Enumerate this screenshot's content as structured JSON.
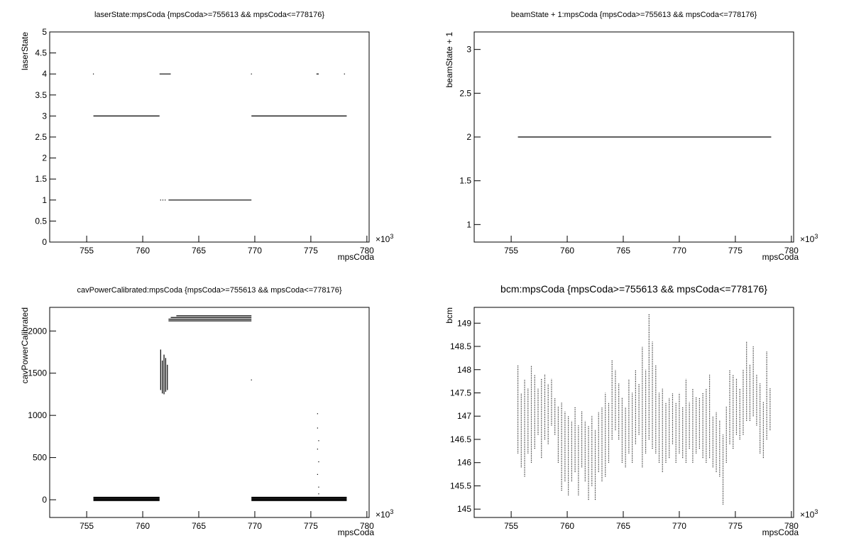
{
  "chart_data": [
    {
      "type": "line",
      "title": "laserState:mpsCoda {mpsCoda>=755613 && mpsCoda<=778176}",
      "x_label": "mpsCoda",
      "y_label": "laserState",
      "x_exponent": {
        "base": "×10",
        "power": "3"
      },
      "xlim": [
        751.7,
        780.2
      ],
      "xticks": [
        755,
        760,
        765,
        770,
        775,
        780
      ],
      "ylim": [
        0,
        5
      ],
      "yticks": [
        0,
        0.5,
        1,
        1.5,
        2,
        2.5,
        3,
        3.5,
        4,
        4.5,
        5
      ],
      "grid": false,
      "color": "#000000",
      "x": [
        755.6,
        null,
        755.6,
        761.5,
        null,
        761.5,
        762.5,
        null,
        761.6,
        null,
        761.8,
        null,
        762.0,
        null,
        762.3,
        769.7,
        null,
        769.7,
        null,
        769.7,
        778.2,
        null,
        775.5,
        775.7,
        null,
        778.0
      ],
      "y": [
        4,
        null,
        3,
        3,
        null,
        4,
        4,
        null,
        1,
        null,
        1,
        null,
        1,
        null,
        1,
        1,
        null,
        4,
        null,
        3,
        3,
        null,
        4,
        4,
        null,
        4
      ]
    },
    {
      "type": "line",
      "title": "beamState + 1:mpsCoda {mpsCoda>=755613 && mpsCoda<=778176}",
      "x_label": "mpsCoda",
      "y_label": "beamState + 1",
      "x_exponent": {
        "base": "×10",
        "power": "3"
      },
      "xlim": [
        751.7,
        780.2
      ],
      "xticks": [
        755,
        760,
        765,
        770,
        775,
        780
      ],
      "ylim": [
        0.8,
        3.2
      ],
      "yticks": [
        1,
        1.5,
        2,
        2.5,
        3
      ],
      "grid": false,
      "color": "#000000",
      "x": [
        755.6,
        778.2
      ],
      "y": [
        2,
        2
      ]
    },
    {
      "type": "line",
      "title": "cavPowerCalibrated:mpsCoda {mpsCoda>=755613 && mpsCoda<=778176}",
      "x_label": "mpsCoda",
      "y_label": "cavPowerCalibrated",
      "x_exponent": {
        "base": "×10",
        "power": "3"
      },
      "xlim": [
        751.7,
        780.2
      ],
      "xticks": [
        755,
        760,
        765,
        770,
        775,
        780
      ],
      "ylim": [
        -210,
        2280
      ],
      "yticks": [
        0,
        500,
        1000,
        1500,
        2000
      ],
      "grid": false,
      "color": "#000000",
      "x": [
        755.6,
        761.5,
        null,
        755.6,
        761.5,
        null,
        755.6,
        761.5,
        null,
        755.6,
        761.5,
        null,
        755.6,
        761.5,
        null,
        769.7,
        778.2,
        null,
        769.7,
        778.2,
        null,
        769.7,
        778.2,
        null,
        769.7,
        778.2,
        null,
        769.7,
        778.2,
        null,
        762.3,
        769.7,
        null,
        762.3,
        769.7,
        null,
        762.5,
        769.7,
        null,
        763.0,
        769.7,
        null,
        761.6,
        761.6,
        null,
        761.75,
        761.75,
        null,
        761.9,
        761.9,
        null,
        762.05,
        762.05,
        null,
        762.2,
        762.2,
        null,
        769.7,
        null,
        775.6,
        null,
        775.6,
        null,
        775.7,
        null,
        775.6,
        null,
        775.7,
        null,
        775.6,
        null,
        775.7,
        null,
        775.7
      ],
      "y": [
        -10,
        -10,
        null,
        0,
        0,
        null,
        10,
        10,
        null,
        20,
        20,
        null,
        30,
        30,
        null,
        -10,
        -10,
        null,
        0,
        0,
        null,
        10,
        10,
        null,
        20,
        20,
        null,
        30,
        30,
        null,
        2120,
        2120,
        null,
        2140,
        2140,
        null,
        2160,
        2160,
        null,
        2180,
        2180,
        null,
        1300,
        1780,
        null,
        1260,
        1650,
        null,
        1250,
        1720,
        null,
        1280,
        1680,
        null,
        1300,
        1600,
        null,
        1420,
        null,
        1020,
        null,
        850,
        null,
        700,
        null,
        600,
        null,
        450,
        null,
        300,
        null,
        150,
        null,
        70
      ]
    },
    {
      "type": "range",
      "title": "bcm:mpsCoda {mpsCoda>=755613 && mpsCoda<=778176}",
      "x_label": "mpsCoda",
      "y_label": "bcm",
      "x_exponent": {
        "base": "×10",
        "power": "3"
      },
      "xlim": [
        751.7,
        780.2
      ],
      "xticks": [
        755,
        760,
        765,
        770,
        775,
        780
      ],
      "ylim": [
        144.82,
        149.34
      ],
      "yticks": [
        145,
        145.5,
        146,
        146.5,
        147,
        147.5,
        148,
        148.5,
        149
      ],
      "grid": false,
      "color": "#000000",
      "x": [
        755.6,
        755.9,
        756.2,
        756.5,
        756.8,
        757.1,
        757.4,
        757.7,
        758.0,
        758.3,
        758.6,
        758.9,
        759.2,
        759.5,
        759.8,
        760.1,
        760.4,
        760.7,
        761.0,
        761.3,
        761.6,
        761.9,
        762.2,
        762.5,
        762.8,
        763.1,
        763.4,
        763.7,
        764.0,
        764.3,
        764.6,
        764.9,
        765.2,
        765.5,
        765.8,
        766.1,
        766.4,
        766.7,
        767.0,
        767.3,
        767.6,
        767.9,
        768.2,
        768.5,
        768.8,
        769.1,
        769.4,
        769.7,
        770.0,
        770.3,
        770.6,
        770.9,
        771.2,
        771.5,
        771.8,
        772.1,
        772.4,
        772.7,
        773.0,
        773.3,
        773.6,
        773.9,
        774.2,
        774.5,
        774.8,
        775.1,
        775.4,
        775.7,
        776.0,
        776.3,
        776.6,
        776.9,
        777.2,
        777.5,
        777.8,
        778.1
      ],
      "low": [
        146.2,
        145.9,
        145.7,
        146.2,
        146.0,
        146.3,
        146.6,
        146.1,
        146.5,
        146.4,
        146.8,
        146.6,
        146.0,
        145.4,
        145.6,
        145.3,
        145.6,
        145.8,
        145.3,
        145.9,
        145.6,
        145.2,
        145.5,
        145.2,
        145.8,
        145.6,
        145.7,
        146.0,
        146.5,
        146.7,
        146.5,
        146.0,
        145.9,
        146.2,
        146.0,
        146.4,
        146.6,
        145.9,
        146.2,
        146.5,
        146.3,
        146.2,
        146.0,
        145.8,
        146.0,
        146.1,
        146.4,
        146.0,
        146.2,
        146.1,
        146.0,
        146.3,
        146.0,
        146.2,
        146.3,
        146.1,
        146.0,
        146.1,
        145.9,
        145.8,
        145.7,
        145.1,
        146.0,
        146.4,
        146.3,
        146.6,
        146.5,
        146.6,
        146.9,
        146.9,
        147.0,
        146.8,
        146.2,
        146.1,
        146.5,
        146.7
      ],
      "high": [
        148.1,
        147.5,
        147.8,
        147.6,
        148.1,
        147.9,
        147.6,
        147.8,
        147.9,
        147.7,
        147.8,
        147.4,
        147.2,
        147.3,
        147.1,
        147.0,
        146.9,
        147.2,
        146.8,
        147.1,
        146.9,
        146.8,
        147.0,
        146.7,
        147.1,
        147.2,
        147.5,
        147.3,
        148.2,
        148.0,
        147.7,
        147.4,
        147.2,
        147.8,
        147.5,
        148.0,
        147.7,
        148.5,
        148.0,
        149.2,
        148.6,
        148.1,
        147.5,
        147.6,
        147.3,
        147.4,
        147.5,
        147.3,
        147.5,
        147.2,
        147.8,
        147.3,
        147.6,
        147.4,
        147.4,
        147.5,
        147.6,
        147.9,
        147.0,
        147.1,
        146.9,
        146.6,
        147.2,
        148.0,
        147.9,
        147.8,
        147.6,
        148.0,
        148.6,
        148.1,
        148.5,
        147.9,
        147.7,
        147.3,
        148.4,
        147.6
      ]
    }
  ]
}
